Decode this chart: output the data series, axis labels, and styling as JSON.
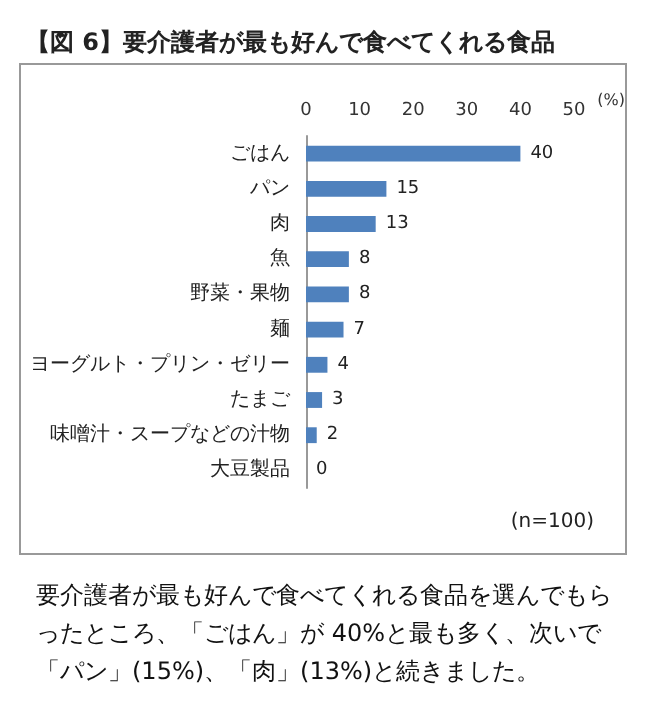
{
  "chart_data": {
    "type": "bar",
    "orientation": "horizontal",
    "title": "【図 6】要介護者が最も好んで食べてくれる食品",
    "xlabel": "(%)",
    "categories": [
      "ごはん",
      "パン",
      "肉",
      "魚",
      "野菜・果物",
      "麺",
      "ヨーグルト・プリン・ゼリー",
      "たまご",
      "味噌汁・スープなどの汁物",
      "大豆製品"
    ],
    "values": [
      40,
      15,
      13,
      8,
      8,
      7,
      4,
      3,
      2,
      0
    ],
    "color": "#4f81bd",
    "data_labels": true,
    "xlim": [
      0,
      50
    ],
    "xticks": [
      0,
      10,
      20,
      30,
      40,
      50
    ],
    "grid": false,
    "annotations": [
      "(n=100)",
      "要介護者が最も好んで食べてくれる食品を選んでもらったところ、「ごはん」が 40%と最も多く、次いで「パン」(15%)、「肉」(13%)と続きました。"
    ]
  }
}
